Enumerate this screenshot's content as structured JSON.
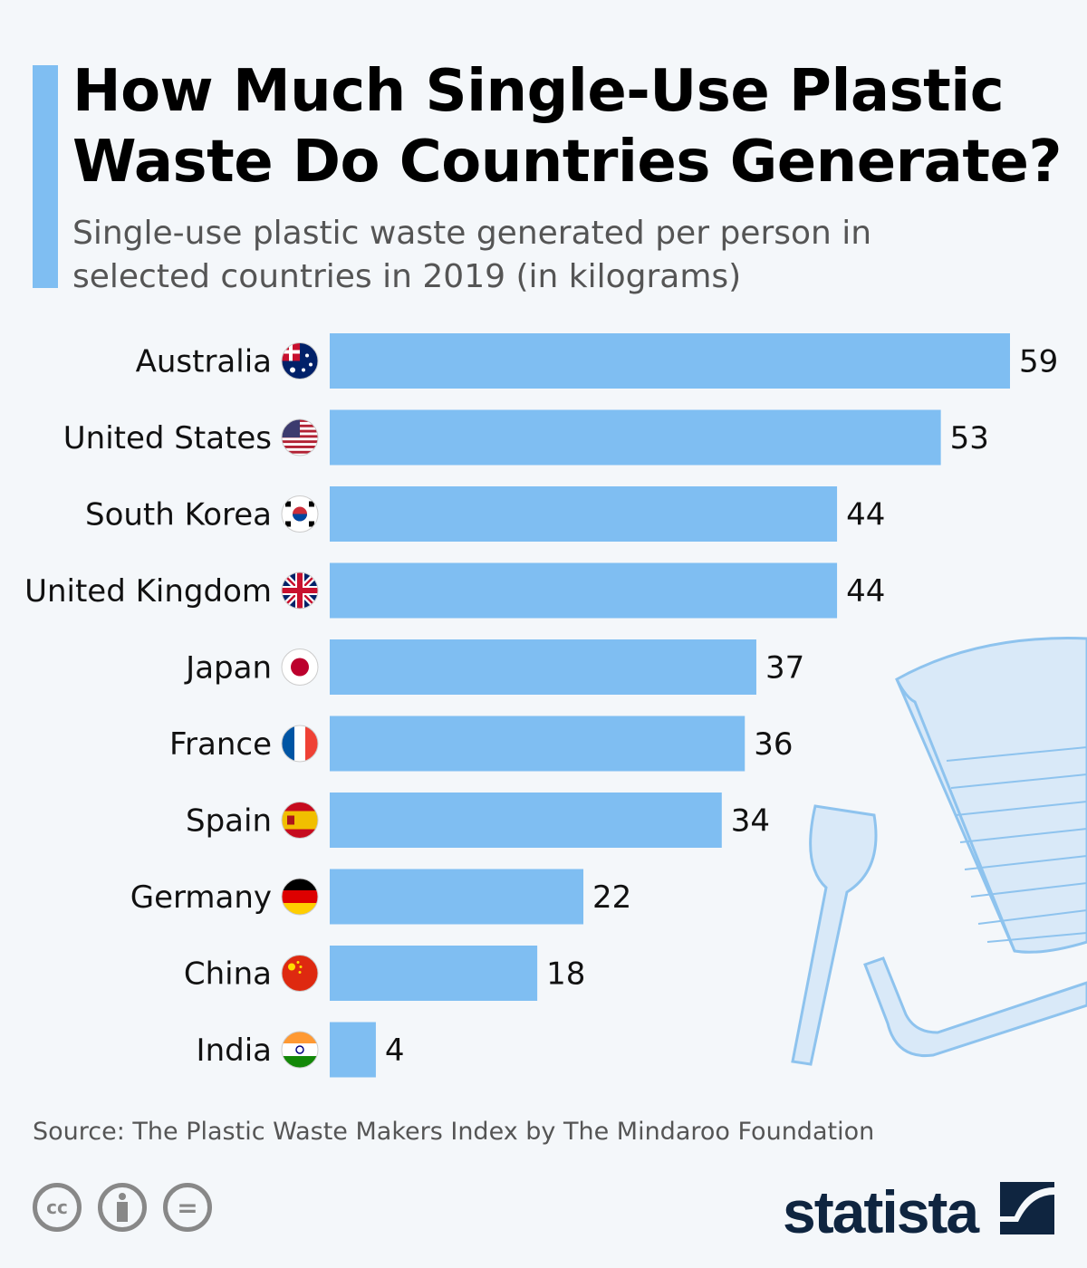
{
  "header": {
    "title": "How Much Single-Use Plastic Waste Do Countries Generate?",
    "subtitle": "Single-use plastic waste generated per person in selected countries in 2019 (in kilograms)"
  },
  "chart_data": {
    "type": "bar",
    "orientation": "horizontal",
    "categories": [
      "Australia",
      "United States",
      "South Korea",
      "United Kingdom",
      "Japan",
      "France",
      "Spain",
      "Germany",
      "China",
      "India"
    ],
    "values": [
      59,
      53,
      44,
      44,
      37,
      36,
      34,
      22,
      18,
      4
    ],
    "xlim": [
      0,
      59
    ],
    "grid": false,
    "data_labels": true,
    "bar_color": "#7fbef2"
  },
  "footer": {
    "source": "Source: The Plastic Waste Makers Index by The Mindaroo Foundation",
    "license_icons": [
      "cc",
      "by",
      "nd"
    ],
    "license_text": {
      "cc": "cc",
      "nd": "="
    },
    "brand": "statista"
  },
  "colors": {
    "background": "#f4f7fa",
    "accent": "#7fbef2",
    "brand": "#0f2540"
  }
}
